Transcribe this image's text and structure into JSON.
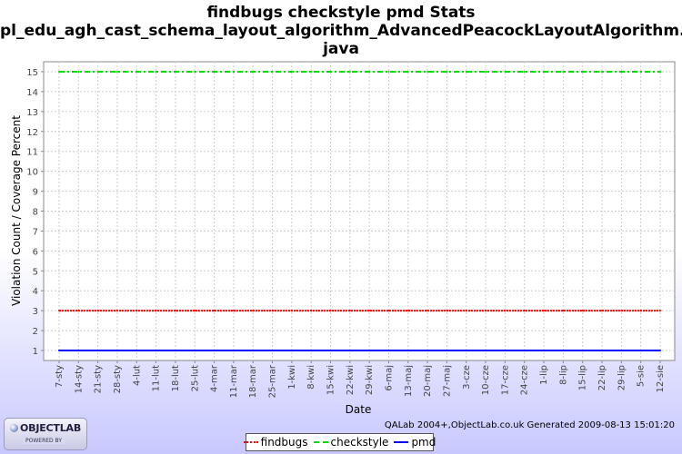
{
  "chart_data": {
    "type": "line",
    "title": [
      "findbugs checkstyle pmd  Stats",
      "pl_edu_agh_cast_schema_layout_algorithm_AdvancedPeacockLayoutAlgorithm.",
      "java"
    ],
    "xlabel": "Date",
    "ylabel": "Violation Count / Coverage Percent",
    "ylim": [
      0.5,
      15.5
    ],
    "yticks": [
      1,
      2,
      3,
      4,
      5,
      6,
      7,
      8,
      9,
      10,
      11,
      12,
      13,
      14,
      15
    ],
    "categories": [
      "7-sty",
      "14-sty",
      "21-sty",
      "28-sty",
      "4-lut",
      "11-lut",
      "18-lut",
      "25-lut",
      "4-mar",
      "11-mar",
      "18-mar",
      "25-mar",
      "1-kwi",
      "8-kwi",
      "15-kwi",
      "22-kwi",
      "29-kwi",
      "6-maj",
      "13-maj",
      "20-maj",
      "27-maj",
      "3-cze",
      "10-cze",
      "17-cze",
      "24-cze",
      "1-lip",
      "8-lip",
      "15-lip",
      "22-lip",
      "29-lip",
      "5-sie",
      "12-sie"
    ],
    "grid": true,
    "legend_position": "bottom",
    "series": [
      {
        "name": "findbugs",
        "color": "#ff0000",
        "style": "dotted",
        "value": 3
      },
      {
        "name": "checkstyle",
        "color": "#00dd00",
        "style": "dashdot",
        "value": 15
      },
      {
        "name": "pmd",
        "color": "#0000ff",
        "style": "solid",
        "value": 1
      }
    ]
  },
  "footer": {
    "generated": "QALab 2004+,ObjectLab.co.uk Generated 2009-08-13 15:01:20"
  },
  "logo": {
    "name": "OBJECTLAB",
    "tagline": "POWERED BY"
  }
}
